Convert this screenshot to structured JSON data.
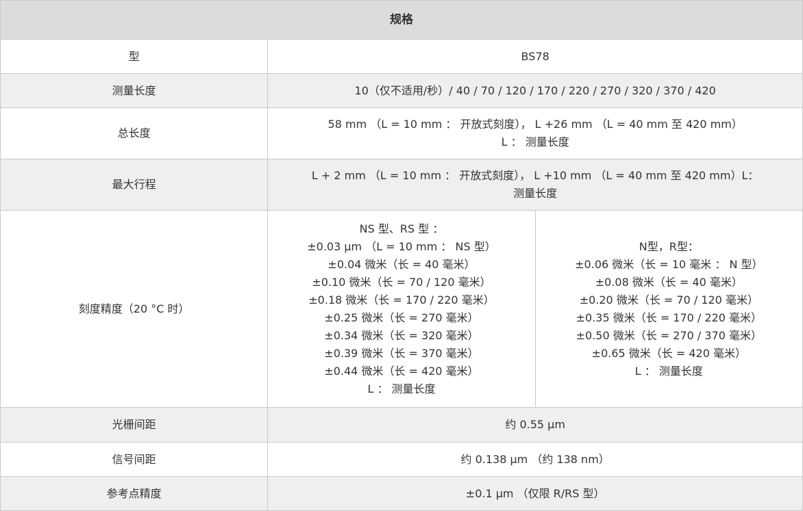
{
  "header": {
    "title": "规格"
  },
  "rows": [
    {
      "label": "型",
      "value": "BS78"
    },
    {
      "label": "测量长度",
      "value": "10（仅不适用/秒）/ 40 / 70 / 120 / 170 / 220 / 270 / 320 / 370 / 420"
    },
    {
      "label": "总长度",
      "lines": [
        "58 mm （L = 10 mm ： 开放式刻度）， L +26 mm （L = 40 mm 至 420 mm）",
        "L ： 测量长度"
      ]
    },
    {
      "label": "最大行程",
      "lines": [
        "L + 2 mm （L = 10 mm ： 开放式刻度）， L +10 mm （L = 40 mm 至 420 mm）L：",
        "测量长度"
      ]
    },
    {
      "label": "刻度精度（20 °C 时）",
      "left": [
        "NS 型、RS 型 ：",
        "±0.03 µm （L = 10 mm ： NS 型）",
        "±0.04 微米（长 = 40 毫米）",
        "±0.10 微米（长 = 70 / 120 毫米）",
        "±0.18 微米（长 = 170 / 220 毫米）",
        "±0.25 微米（长 = 270 毫米）",
        "±0.34 微米（长 = 320 毫米）",
        "±0.39 微米（长 = 370 毫米）",
        "±0.44 微米（长 = 420 毫米）",
        "L ： 测量长度"
      ],
      "right": [
        "N型，R型：",
        "±0.06 微米（长 = 10 毫米 ： N 型）",
        "±0.08 微米（长 = 40 毫米）",
        "±0.20 微米（长 = 70 / 120 毫米）",
        "±0.35 微米（长 = 170 / 220 毫米）",
        "±0.50 微米（长 = 270 / 370 毫米）",
        "±0.65 微米（长 = 420 毫米）",
        "L ： 测量长度"
      ]
    },
    {
      "label": "光栅间距",
      "value": "约 0.55 µm"
    },
    {
      "label": "信号间距",
      "value": "约 0.138 µm （约 138 nm）"
    },
    {
      "label": "参考点精度",
      "value": "±0.1 µm （仅限 R/RS 型）"
    }
  ]
}
